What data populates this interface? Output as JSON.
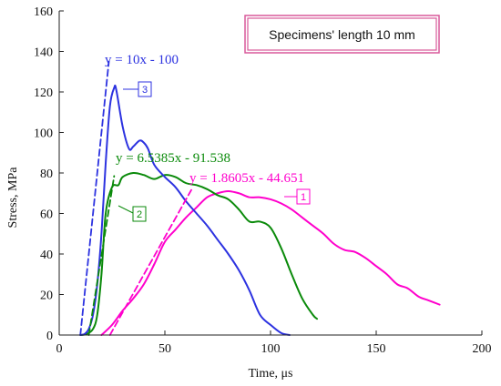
{
  "chart_data": {
    "type": "line",
    "xlabel": "Time, μs",
    "ylabel": "Stress, MPa",
    "xlim": [
      0,
      200
    ],
    "ylim": [
      0,
      160
    ],
    "xticks": [
      0,
      50,
      100,
      150,
      200
    ],
    "yticks": [
      0,
      20,
      40,
      60,
      80,
      100,
      120,
      140,
      160
    ],
    "grid": false,
    "annotation": "Specimens'  length 10 mm",
    "series": [
      {
        "name": "1",
        "color": "#ff00cc",
        "x": [
          20,
          25,
          30,
          35,
          40,
          45,
          50,
          55,
          60,
          65,
          70,
          75,
          80,
          85,
          90,
          95,
          100,
          105,
          110,
          115,
          120,
          125,
          130,
          135,
          140,
          145,
          150,
          155,
          160,
          165,
          170,
          175,
          180
        ],
        "y": [
          0,
          5,
          12,
          18,
          25,
          35,
          46,
          52,
          58,
          63,
          68,
          70,
          71,
          70,
          68,
          68,
          67,
          65,
          62,
          58,
          54,
          50,
          45,
          42,
          41,
          38,
          34,
          30,
          25,
          23,
          19,
          17,
          15
        ]
      },
      {
        "name": "2",
        "color": "#0a8a0a",
        "x": [
          10,
          13,
          16,
          18,
          20,
          22,
          25,
          28,
          30,
          35,
          40,
          45,
          50,
          55,
          60,
          65,
          70,
          75,
          80,
          85,
          90,
          95,
          100,
          105,
          110,
          115,
          120,
          122
        ],
        "y": [
          0,
          0.5,
          3,
          10,
          30,
          60,
          73,
          74,
          78,
          80,
          79,
          77,
          79,
          78,
          75,
          74,
          72,
          69,
          67,
          62,
          56,
          56,
          53,
          43,
          30,
          18,
          10,
          8
        ]
      },
      {
        "name": "3",
        "color": "#2c32e0",
        "x": [
          10,
          12,
          14,
          16,
          18,
          20,
          22,
          24,
          26,
          27,
          30,
          33,
          35,
          38,
          40,
          42,
          45,
          50,
          55,
          60,
          65,
          70,
          75,
          80,
          85,
          90,
          95,
          100,
          105,
          109
        ],
        "y": [
          0,
          0.5,
          3,
          10,
          25,
          50,
          85,
          113,
          122,
          121,
          103,
          92,
          93,
          96,
          95,
          92,
          84,
          78,
          73,
          66,
          60,
          54,
          47,
          40,
          32,
          22,
          10,
          5,
          1,
          0
        ]
      },
      {
        "name": "y = 10x - 100",
        "color": "#2c32e0",
        "dashed": true,
        "x": [
          10,
          23.5
        ],
        "y": [
          0,
          135
        ]
      },
      {
        "name": "y = 6.5385x - 91.538",
        "color": "#0a8a0a",
        "dashed": true,
        "x": [
          14,
          26
        ],
        "y": [
          0,
          78.5
        ]
      },
      {
        "name": "y = 1.8605x - 44.651",
        "color": "#ff00cc",
        "dashed": true,
        "x": [
          24,
          62.5
        ],
        "y": [
          0,
          71.6
        ]
      }
    ],
    "equation_labels": [
      {
        "text": "y = 10x - 100",
        "color": "#2c32e0"
      },
      {
        "text": "y = 6.5385x - 91.538",
        "color": "#0a8a0a"
      },
      {
        "text": "y = 1.8605x - 44.651",
        "color": "#ff00cc"
      }
    ],
    "series_tags": [
      {
        "text": "1",
        "color": "#ff00cc"
      },
      {
        "text": "2",
        "color": "#0a8a0a"
      },
      {
        "text": "3",
        "color": "#2c32e0"
      }
    ]
  }
}
